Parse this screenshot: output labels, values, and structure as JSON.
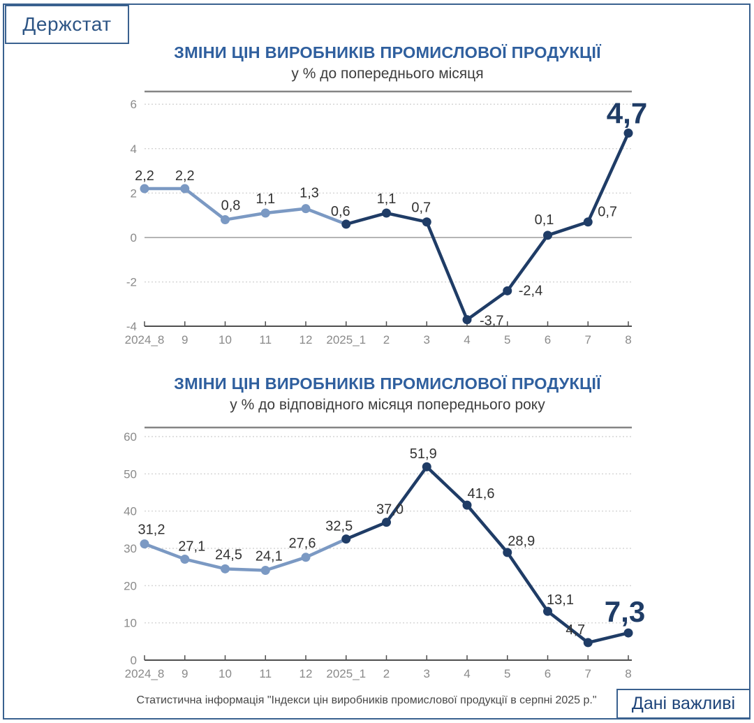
{
  "logo": {
    "text": "Держстат"
  },
  "colors": {
    "frame": "#3a618f",
    "title_blue": "#2f5f9e",
    "line_2024": "#7b99c3",
    "line_2025": "#1f3c66",
    "highlight_navy": "#1f3c66"
  },
  "footer": {
    "source_text": "Статистична інформація \"Індекси цін виробників промислової продукції в серпні 2025 р.\"",
    "badge": "Дані важливі"
  },
  "chart_data": [
    {
      "type": "line",
      "title": "ЗМІНИ ЦІН ВИРОБНИКІВ ПРОМИСЛОВОЇ ПРОДУКЦІЇ",
      "subtitle": "у % до попереднього місяця",
      "categories": [
        "2024_8",
        "9",
        "10",
        "11",
        "12",
        "2025_1",
        "2",
        "3",
        "4",
        "5",
        "6",
        "7",
        "8"
      ],
      "values": [
        2.2,
        2.2,
        0.8,
        1.1,
        1.3,
        0.6,
        1.1,
        0.7,
        -3.7,
        -2.4,
        0.1,
        0.7,
        4.7
      ],
      "point_labels": [
        "2,2",
        "2,2",
        "0,8",
        "1,1",
        "1,3",
        "0,6",
        "1,1",
        "0,7",
        "-3,7",
        "-2,4",
        "0,1",
        "0,7",
        "4,7"
      ],
      "highlight_last_point": true,
      "ylim": [
        -4,
        6.6
      ],
      "yticks": [
        6,
        4,
        2,
        0,
        -2,
        -4
      ],
      "xlabel": "",
      "ylabel": "",
      "grid": "horizontal-dotted",
      "legend": "none",
      "series": [
        {
          "name": "2024",
          "color": "#7b99c3",
          "point_index_range": [
            0,
            5
          ]
        },
        {
          "name": "2025",
          "color": "#1f3c66",
          "point_index_range": [
            5,
            12
          ]
        }
      ]
    },
    {
      "type": "line",
      "title": "ЗМІНИ ЦІН ВИРОБНИКІВ ПРОМИСЛОВОЇ ПРОДУКЦІЇ",
      "subtitle": "у % до відповідного місяця попереднього року",
      "categories": [
        "2024_8",
        "9",
        "10",
        "11",
        "12",
        "2025_1",
        "2",
        "3",
        "4",
        "5",
        "6",
        "7",
        "8"
      ],
      "values": [
        31.2,
        27.1,
        24.5,
        24.1,
        27.6,
        32.5,
        37.0,
        51.9,
        41.6,
        28.9,
        13.1,
        4.7,
        7.3
      ],
      "point_labels": [
        "31,2",
        "27,1",
        "24,5",
        "24,1",
        "27,6",
        "32,5",
        "37,0",
        "51,9",
        "41,6",
        "28,9",
        "13,1",
        "4,7",
        "7,3"
      ],
      "highlight_last_point": true,
      "ylim": [
        0,
        62.5
      ],
      "yticks": [
        60,
        50,
        40,
        30,
        20,
        10,
        0
      ],
      "xlabel": "",
      "ylabel": "",
      "grid": "horizontal-dotted",
      "legend": "none",
      "series": [
        {
          "name": "2024",
          "color": "#7b99c3",
          "point_index_range": [
            0,
            5
          ]
        },
        {
          "name": "2025",
          "color": "#1f3c66",
          "point_index_range": [
            5,
            12
          ]
        }
      ]
    }
  ]
}
